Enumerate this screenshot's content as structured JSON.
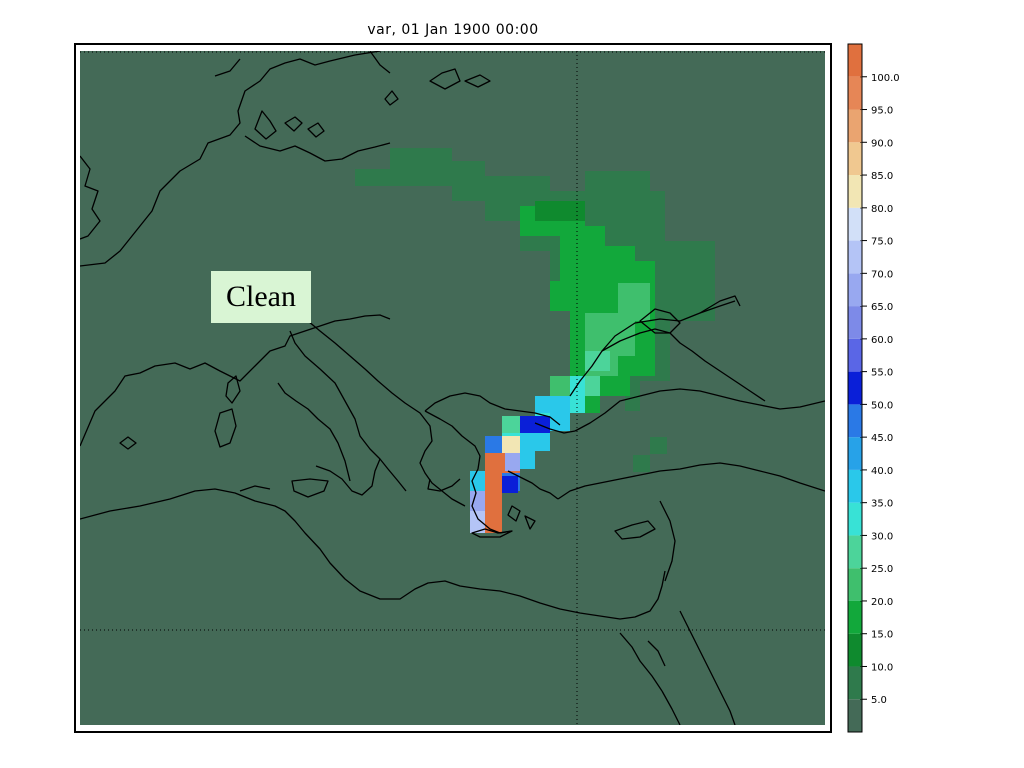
{
  "title": "var, 01 Jan 1900 00:00",
  "label": "Clean",
  "colors": {
    "background": "#446a57",
    "coast": "#000000",
    "frame": "#000000"
  },
  "colorbar": {
    "levels": [
      {
        "label": "",
        "color": "#446a57"
      },
      {
        "label": "5.0",
        "color": "#2f7a4c"
      },
      {
        "label": "10.0",
        "color": "#0f8a2e"
      },
      {
        "label": "15.0",
        "color": "#12a83b"
      },
      {
        "label": "20.0",
        "color": "#3fbf6d"
      },
      {
        "label": "25.0",
        "color": "#4cd49a"
      },
      {
        "label": "30.0",
        "color": "#38e2d6"
      },
      {
        "label": "35.0",
        "color": "#2ac8ea"
      },
      {
        "label": "40.0",
        "color": "#27a2e8"
      },
      {
        "label": "45.0",
        "color": "#2a79e6"
      },
      {
        "label": "50.0",
        "color": "#0a1fd8"
      },
      {
        "label": "55.0",
        "color": "#5a66e6"
      },
      {
        "label": "60.0",
        "color": "#7d8ae8"
      },
      {
        "label": "65.0",
        "color": "#98a8f0"
      },
      {
        "label": "70.0",
        "color": "#b4c4f6"
      },
      {
        "label": "75.0",
        "color": "#d2e0f8"
      },
      {
        "label": "80.0",
        "color": "#f2e6b4"
      },
      {
        "label": "85.0",
        "color": "#f0c890"
      },
      {
        "label": "90.0",
        "color": "#eaa470"
      },
      {
        "label": "95.0",
        "color": "#e68656"
      },
      {
        "label": "100.0",
        "color": "#e0703e"
      }
    ]
  }
}
